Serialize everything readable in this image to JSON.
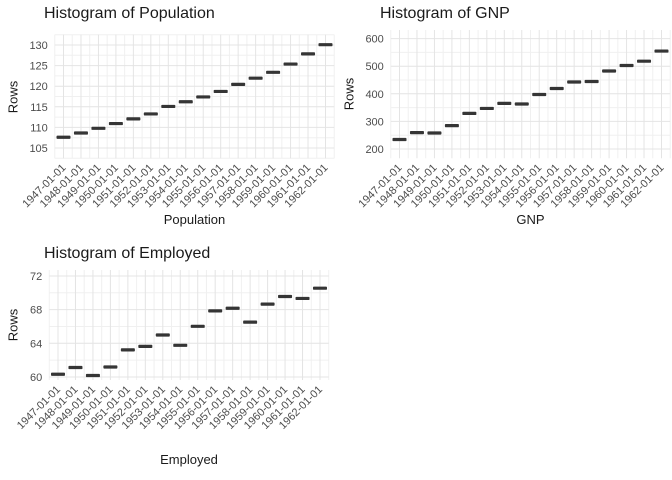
{
  "colors": {
    "dash": "#353535",
    "grid_major": "#e4e4e4",
    "grid_minor": "#f0f0f0",
    "axis_text": "#4d4d4d",
    "title_text": "#1a1a1a",
    "background": "#ffffff"
  },
  "chart_data": [
    {
      "type": "scatter",
      "marker": "dash",
      "title": "Histogram of Population",
      "xlabel": "Population",
      "ylabel": "Rows",
      "x": [
        "1947-01-01",
        "1948-01-01",
        "1949-01-01",
        "1950-01-01",
        "1951-01-01",
        "1952-01-01",
        "1953-01-01",
        "1954-01-01",
        "1955-01-01",
        "1956-01-01",
        "1957-01-01",
        "1958-01-01",
        "1959-01-01",
        "1960-01-01",
        "1961-01-01",
        "1962-01-01"
      ],
      "values": [
        107.608,
        108.632,
        109.773,
        110.929,
        112.075,
        113.27,
        115.094,
        116.219,
        117.388,
        118.734,
        120.445,
        121.95,
        123.366,
        125.368,
        127.852,
        130.081
      ],
      "yticks": [
        105,
        110,
        115,
        120,
        125,
        130
      ],
      "ylim": [
        102.5,
        132.5
      ],
      "grid": true,
      "legend": "none"
    },
    {
      "type": "scatter",
      "marker": "dash",
      "title": "Histogram of GNP",
      "xlabel": "GNP",
      "ylabel": "Rows",
      "x": [
        "1947-01-01",
        "1948-01-01",
        "1949-01-01",
        "1950-01-01",
        "1951-01-01",
        "1952-01-01",
        "1953-01-01",
        "1954-01-01",
        "1955-01-01",
        "1956-01-01",
        "1957-01-01",
        "1958-01-01",
        "1959-01-01",
        "1960-01-01",
        "1961-01-01",
        "1962-01-01"
      ],
      "values": [
        234.289,
        259.426,
        258.054,
        284.599,
        328.975,
        346.999,
        365.385,
        363.112,
        397.469,
        419.18,
        442.769,
        444.546,
        482.704,
        502.601,
        518.173,
        554.894
      ],
      "yticks": [
        200,
        300,
        400,
        500,
        600
      ],
      "ylim": [
        166.3,
        631.2
      ],
      "grid": true,
      "legend": "none"
    },
    {
      "type": "scatter",
      "marker": "dash",
      "title": "Histogram of Employed",
      "xlabel": "Employed",
      "ylabel": "Rows",
      "x": [
        "1947-01-01",
        "1948-01-01",
        "1949-01-01",
        "1950-01-01",
        "1951-01-01",
        "1952-01-01",
        "1953-01-01",
        "1954-01-01",
        "1955-01-01",
        "1956-01-01",
        "1957-01-01",
        "1958-01-01",
        "1959-01-01",
        "1960-01-01",
        "1961-01-01",
        "1962-01-01"
      ],
      "values": [
        60.323,
        61.122,
        60.171,
        61.187,
        63.221,
        63.639,
        64.989,
        63.761,
        66.019,
        67.857,
        68.169,
        66.513,
        68.655,
        69.564,
        69.331,
        70.551
      ],
      "yticks": [
        60,
        64,
        68,
        72
      ],
      "ylim": [
        59.64,
        72.71
      ],
      "grid": true,
      "legend": "none"
    }
  ]
}
